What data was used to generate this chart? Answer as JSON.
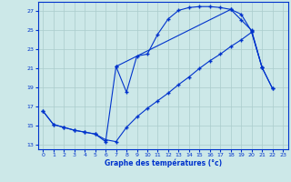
{
  "xlabel": "Graphe des températures (°c)",
  "bg_color": "#cce8e8",
  "grid_color": "#aacccc",
  "line_color": "#0033cc",
  "xlim": [
    -0.5,
    23.5
  ],
  "ylim": [
    12.5,
    28.0
  ],
  "yticks": [
    13,
    15,
    17,
    19,
    21,
    23,
    25,
    27
  ],
  "xticks": [
    0,
    1,
    2,
    3,
    4,
    5,
    6,
    7,
    8,
    9,
    10,
    11,
    12,
    13,
    14,
    15,
    16,
    17,
    18,
    19,
    20,
    21,
    22,
    23
  ],
  "curve1_x": [
    0,
    1,
    2,
    3,
    4,
    5,
    6,
    7,
    8,
    9,
    10,
    11,
    12,
    13,
    14,
    15,
    16,
    17,
    18,
    19,
    20,
    21
  ],
  "curve1_y": [
    16.5,
    15.1,
    14.8,
    14.5,
    14.3,
    14.1,
    13.3,
    21.2,
    18.5,
    22.3,
    22.5,
    24.6,
    26.2,
    27.1,
    27.4,
    27.5,
    27.5,
    27.4,
    27.2,
    26.7,
    24.9,
    21.1
  ],
  "curve2_x": [
    0,
    1,
    2,
    3,
    4,
    5,
    6,
    7,
    8,
    9,
    10,
    11,
    12,
    13,
    14,
    15,
    16,
    17,
    18,
    19,
    20,
    21,
    22
  ],
  "curve2_y": [
    16.5,
    15.1,
    14.8,
    14.5,
    14.3,
    14.1,
    13.5,
    13.3,
    14.8,
    15.9,
    16.8,
    17.6,
    18.4,
    19.3,
    20.1,
    21.0,
    21.8,
    22.5,
    23.3,
    24.0,
    24.8,
    21.1,
    18.9
  ],
  "curve3_x": [
    7,
    18,
    19,
    20,
    21,
    22
  ],
  "curve3_y": [
    21.2,
    27.2,
    26.1,
    25.0,
    21.1,
    18.9
  ]
}
